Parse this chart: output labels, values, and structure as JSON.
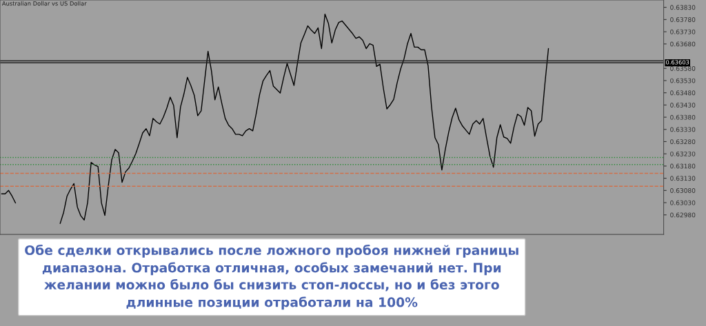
{
  "chart_data": {
    "type": "line",
    "title": "Australian Dollar vs US Dollar",
    "categories": [
      null,
      null,
      null,
      null,
      null,
      null,
      null,
      null,
      null,
      null,
      null,
      null,
      null,
      null,
      null,
      null,
      null,
      null,
      null,
      null,
      null,
      null,
      null,
      null,
      null,
      null,
      null,
      null,
      null,
      null,
      null,
      null,
      null,
      null,
      null,
      null,
      null,
      null,
      null,
      null,
      null,
      null,
      null,
      null,
      null,
      null,
      null,
      null,
      null,
      null,
      null,
      null,
      null,
      null,
      null,
      null,
      null,
      null,
      null,
      null,
      null,
      null,
      null,
      null,
      null,
      null,
      null,
      null,
      null,
      null,
      null,
      null,
      null,
      null,
      null,
      null,
      null,
      null,
      null,
      null,
      null,
      null,
      null,
      null,
      null,
      null,
      null,
      null,
      null,
      null,
      null,
      null,
      null,
      null,
      null,
      null,
      null,
      null,
      null,
      null,
      null,
      null,
      null,
      null,
      null,
      null,
      null,
      null,
      null,
      null,
      null,
      null,
      null,
      null,
      null,
      null,
      null,
      null,
      null,
      null,
      null,
      null,
      null,
      null,
      null,
      null,
      null,
      null,
      null,
      null,
      null,
      null,
      null,
      null,
      null,
      null,
      null,
      null,
      null,
      null,
      null,
      null,
      null,
      null,
      null,
      null,
      null,
      null,
      null,
      null,
      null,
      null,
      null,
      null,
      null,
      null,
      null,
      null,
      null,
      null,
      null,
      null,
      null,
      null,
      null,
      null,
      null,
      null,
      null,
      null,
      null,
      null,
      null,
      null,
      null,
      null,
      null,
      null,
      null,
      null,
      null,
      null,
      null,
      null,
      null,
      null,
      null,
      null,
      null,
      null,
      null,
      null,
      null
    ],
    "series": [
      {
        "color": "#000000",
        "values": [
          0.63066,
          0.63066,
          0.6308,
          0.63057,
          0.63029,
          null,
          null,
          null,
          null,
          null,
          null,
          null,
          null,
          null,
          null,
          null,
          null,
          null,
          null,
          null,
          null,
          null,
          null,
          null,
          null,
          null,
          null,
          null,
          null,
          null,
          null,
          null,
          null,
          null,
          null,
          null,
          null,
          null,
          null,
          null,
          null,
          null,
          null,
          null,
          null,
          null,
          null,
          null,
          null,
          null,
          null,
          null,
          null,
          null,
          null,
          null,
          null,
          null,
          null,
          null,
          null,
          null,
          null,
          null,
          null,
          null,
          null,
          null,
          null,
          null,
          null,
          null,
          null,
          null,
          null,
          null,
          null,
          null,
          null,
          null,
          null,
          null,
          null,
          null,
          null,
          null,
          null,
          null,
          null,
          null,
          null,
          null,
          null,
          null,
          null,
          null,
          null,
          null,
          null,
          null,
          null,
          null,
          null,
          null,
          null,
          null,
          null,
          null,
          null,
          null,
          null,
          null,
          null,
          null,
          null,
          null,
          null,
          null,
          null,
          null,
          null,
          null,
          null,
          null,
          null,
          null,
          null,
          null,
          null,
          null,
          null,
          null,
          null,
          null,
          null,
          null,
          null,
          null,
          null,
          null,
          null,
          null,
          null,
          null,
          null,
          null,
          null,
          null,
          null,
          null,
          null,
          null,
          null,
          null,
          null,
          null,
          null,
          null,
          null,
          null,
          null,
          null,
          null,
          null,
          null,
          null,
          null,
          null,
          null,
          null,
          null,
          null,
          null,
          null,
          null,
          null,
          null,
          null,
          null,
          null,
          null,
          null,
          null,
          null,
          null,
          null,
          null,
          null,
          null,
          null,
          null,
          null,
          null
        ]
      },
      {
        "color": "#000000",
        "values": [
          null,
          null,
          null,
          null,
          null,
          null,
          null,
          null,
          null,
          null,
          null,
          null,
          null,
          null,
          null,
          null,
          null,
          0.62945,
          0.6299,
          0.63057,
          0.63085,
          0.63108,
          0.63012,
          0.62976,
          0.62959,
          0.63032,
          0.63195,
          0.63184,
          0.63178,
          0.63029,
          0.62978,
          0.63099,
          0.63206,
          0.63248,
          0.63234,
          0.63113,
          0.63156,
          0.63172,
          0.632,
          0.63231,
          0.63273,
          0.63316,
          0.63333,
          0.63304,
          0.63375,
          0.63361,
          0.63352,
          0.6338,
          0.63417,
          0.63462,
          0.63428,
          0.63296,
          0.63422,
          0.63476,
          0.63543,
          0.6351,
          0.6347,
          0.63386,
          0.63406,
          0.63529,
          0.6365,
          0.63569,
          0.63451,
          0.63504,
          0.63437,
          0.63375,
          0.63347,
          0.63333,
          0.6331,
          0.6331,
          0.63304,
          0.63324,
          0.63333,
          0.63324,
          0.63394,
          0.63473,
          0.63529,
          0.63551,
          0.63571,
          0.63507,
          0.63493,
          0.63479,
          0.63543,
          0.636,
          0.63555,
          0.6351,
          0.636,
          0.63684,
          0.63718,
          0.63754,
          0.63737,
          0.63723,
          0.63746,
          0.63661,
          0.63802,
          0.63765,
          0.63684,
          0.63737,
          0.63768,
          0.63774,
          0.63757,
          0.6374,
          0.63723,
          0.63703,
          0.63709,
          0.63695,
          0.63661,
          0.63681,
          0.63675,
          0.63588,
          0.63597,
          0.63498,
          0.63414,
          0.63431,
          0.63453,
          0.63521,
          0.63577,
          0.63619,
          0.63681,
          0.63723,
          0.63667,
          0.63667,
          0.63656,
          0.63656,
          0.63591,
          0.63422,
          0.63296,
          0.63268,
          0.63164,
          0.63248,
          0.63319,
          0.63378,
          0.63417,
          0.63369,
          0.63344,
          0.63327,
          0.6331,
          0.63352,
          0.63366,
          0.63352,
          0.63375,
          0.63296,
          0.6322,
          0.63175,
          0.63296,
          0.63349,
          0.63299,
          0.63293,
          0.63273,
          0.63341,
          0.63392,
          0.63383,
          0.63347,
          0.6342,
          0.63406,
          0.63302,
          0.63352,
          0.63366,
          0.63521,
          0.63661,
          null,
          null,
          null,
          null,
          null,
          null,
          null,
          null,
          null,
          null,
          null,
          null,
          null,
          null,
          null,
          null,
          null,
          null,
          null,
          null,
          null,
          null,
          null,
          null,
          null,
          null,
          null,
          null,
          null,
          null,
          null,
          null,
          null
        ]
      }
    ],
    "ylim": [
      0.629,
      0.6386
    ],
    "yticks": [
      {
        "value": 0.6298,
        "label": "0.62980"
      },
      {
        "value": 0.6303,
        "label": "0.63030"
      },
      {
        "value": 0.6308,
        "label": "0.63080"
      },
      {
        "value": 0.6313,
        "label": "0.63130"
      },
      {
        "value": 0.6318,
        "label": "0.63180"
      },
      {
        "value": 0.6323,
        "label": "0.63230"
      },
      {
        "value": 0.6328,
        "label": "0.63280"
      },
      {
        "value": 0.6333,
        "label": "0.63330"
      },
      {
        "value": 0.6338,
        "label": "0.63380"
      },
      {
        "value": 0.6343,
        "label": "0.63430"
      },
      {
        "value": 0.6348,
        "label": "0.63480"
      },
      {
        "value": 0.6353,
        "label": "0.63530"
      },
      {
        "value": 0.6358,
        "label": "0.63580"
      },
      {
        "value": 0.6368,
        "label": "0.63680"
      },
      {
        "value": 0.6373,
        "label": "0.63730"
      },
      {
        "value": 0.6378,
        "label": "0.63780"
      },
      {
        "value": 0.6383,
        "label": "0.63830"
      }
    ],
    "tick_labels": "y",
    "grid": false,
    "legend": false,
    "marker": "none",
    "line_style": "solid",
    "ref_lines": [
      {
        "axis": "y",
        "value": 0.63611,
        "color": "#202020",
        "line_style": "solid"
      },
      {
        "axis": "y",
        "value": 0.63603,
        "label": "0.63603",
        "color": "#202020",
        "line_style": "solid"
      },
      {
        "axis": "y",
        "value": 0.63215,
        "color": "#2e8b3a",
        "line_style": "dotted"
      },
      {
        "axis": "y",
        "value": 0.63186,
        "color": "#2e8b3a",
        "line_style": "dotted"
      },
      {
        "axis": "y",
        "value": 0.6315,
        "color": "#d0704a",
        "line_style": "dashed"
      },
      {
        "axis": "y",
        "value": 0.63097,
        "color": "#d0704a",
        "line_style": "dashed"
      }
    ],
    "annotations": [
      "Обе сделки открывались после ложного пробоя нижней границы\nдиапазона. Отработка отличная, особых замечаний нет. При\nжелании можно было бы снизить стоп-лоссы, но и без этого\nдлинные позиции отработали на 100%"
    ]
  }
}
